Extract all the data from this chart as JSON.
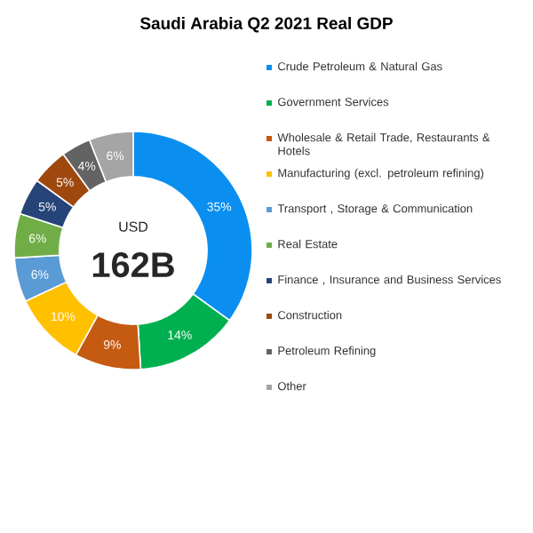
{
  "chart_data": {
    "type": "donut",
    "title": "Saudi Arabia Q2 2021 Real GDP",
    "categories": [
      "Crude Petroleum & Natural Gas",
      "Government Services",
      "Wholesale & Retail Trade, Restaurants & Hotels",
      "Manufacturing (excl. petroleum refining)",
      "Transport , Storage & Communication",
      "Real Estate",
      "Finance , Insurance and Business Services",
      "Construction",
      "Petroleum Refining",
      "Other"
    ],
    "values": [
      35,
      14,
      9,
      10,
      6,
      6,
      5,
      5,
      4,
      6
    ],
    "colors": [
      "#0a8ff0",
      "#00b050",
      "#c55a11",
      "#ffc000",
      "#5b9bd5",
      "#70ad47",
      "#264478",
      "#9e480e",
      "#636363",
      "#a5a5a5"
    ],
    "value_labels": [
      "35%",
      "14%",
      "9%",
      "10%",
      "6%",
      "6%",
      "5%",
      "5%",
      "4%",
      "6%"
    ],
    "legend": "right",
    "annotations": [
      "USD",
      "162B"
    ]
  }
}
